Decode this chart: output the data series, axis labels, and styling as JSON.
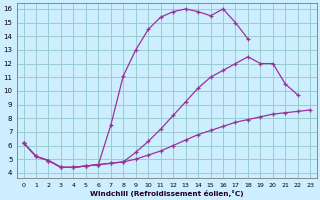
{
  "xlabel": "Windchill (Refroidissement éolien,°C)",
  "background_color": "#cceeff",
  "grid_color": "#99cccc",
  "line_color": "#993399",
  "xlim": [
    -0.5,
    23.5
  ],
  "ylim": [
    3.6,
    16.4
  ],
  "xticks": [
    0,
    1,
    2,
    3,
    4,
    5,
    6,
    7,
    8,
    9,
    10,
    11,
    12,
    13,
    14,
    15,
    16,
    17,
    18,
    19,
    20,
    21,
    22,
    23
  ],
  "yticks": [
    4,
    5,
    6,
    7,
    8,
    9,
    10,
    11,
    12,
    13,
    14,
    15,
    16
  ],
  "series1_x": [
    0,
    1,
    2,
    3,
    4,
    5,
    6,
    7,
    8,
    9,
    10,
    11,
    12,
    13,
    14,
    15,
    16,
    17,
    18
  ],
  "series1_y": [
    6.2,
    5.2,
    4.9,
    4.4,
    4.4,
    4.5,
    4.6,
    7.5,
    11.1,
    13.0,
    14.5,
    15.4,
    15.8,
    16.0,
    15.8,
    15.5,
    16.0,
    15.0,
    13.8
  ],
  "series2_x": [
    0,
    1,
    2,
    3,
    4,
    5,
    6,
    7,
    8,
    9,
    10,
    11,
    12,
    13,
    14,
    15,
    16,
    17,
    18,
    19,
    20,
    21,
    22
  ],
  "series2_y": [
    6.2,
    5.2,
    4.9,
    4.4,
    4.4,
    4.5,
    4.6,
    4.7,
    4.8,
    5.5,
    6.3,
    7.2,
    8.2,
    9.2,
    10.2,
    11.0,
    11.5,
    12.0,
    12.5,
    12.0,
    12.0,
    10.5,
    9.7
  ],
  "series3_x": [
    0,
    1,
    2,
    3,
    4,
    5,
    6,
    7,
    8,
    9,
    10,
    11,
    12,
    13,
    14,
    15,
    16,
    17,
    18,
    19,
    20,
    21,
    22,
    23
  ],
  "series3_y": [
    6.2,
    5.2,
    4.9,
    4.4,
    4.4,
    4.5,
    4.6,
    4.7,
    4.8,
    5.0,
    5.3,
    5.6,
    6.0,
    6.4,
    6.8,
    7.1,
    7.4,
    7.7,
    7.9,
    8.1,
    8.3,
    8.4,
    8.5,
    8.6
  ]
}
